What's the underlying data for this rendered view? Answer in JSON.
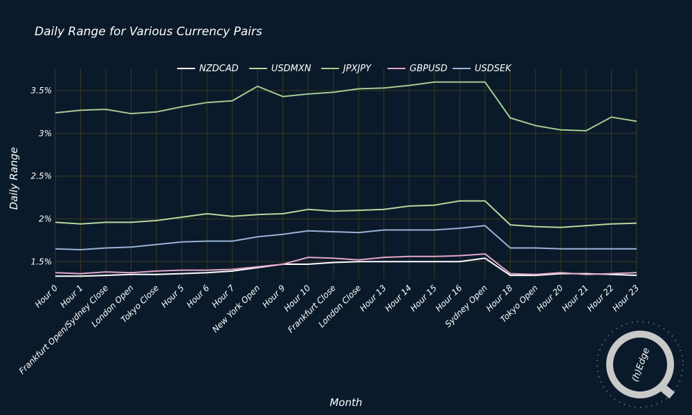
{
  "chart_data": {
    "type": "line",
    "title": "Daily Range for Various Currency Pairs",
    "xlabel": "Month",
    "ylabel": "Daily Range",
    "ylim": [
      1.3,
      3.75
    ],
    "yticks": [
      1.5,
      2,
      2.5,
      3,
      3.5
    ],
    "ytick_labels": [
      "1.5%",
      "2%",
      "2.5%",
      "3%",
      "3.5%"
    ],
    "grid": true,
    "legend_position": "top-center",
    "categories": [
      "Hour 0",
      "Hour 1",
      "Frankfurt Open/Sydney Close",
      "London Open",
      "Tokyo Close",
      "Hour 5",
      "Hour 6",
      "Hour 7",
      "New York Open",
      "Hour 9",
      "Hour 10",
      "Frankfurt Close",
      "London Close",
      "Hour 13",
      "Hour 14",
      "Hour 15",
      "Hour 16",
      "Sydney Open",
      "Hour 18",
      "Tokyo Open",
      "Hour 20",
      "Hour 21",
      "Hour 22",
      "Hour 23"
    ],
    "series": [
      {
        "name": "NZDCAD",
        "color": "#ffffff",
        "values": [
          1.33,
          1.33,
          1.34,
          1.35,
          1.35,
          1.36,
          1.37,
          1.39,
          1.43,
          1.47,
          1.47,
          1.49,
          1.5,
          1.5,
          1.5,
          1.5,
          1.5,
          1.54,
          1.34,
          1.34,
          1.36,
          1.36,
          1.35,
          1.34
        ]
      },
      {
        "name": "USDMXN",
        "color": "#b8d99a",
        "values": [
          1.96,
          1.94,
          1.96,
          1.96,
          1.98,
          2.02,
          2.06,
          2.03,
          2.05,
          2.06,
          2.11,
          2.09,
          2.1,
          2.11,
          2.15,
          2.16,
          2.21,
          2.21,
          1.93,
          1.91,
          1.9,
          1.92,
          1.94,
          1.95
        ]
      },
      {
        "name": "JPXJPY",
        "color": "#a6cc90",
        "values": [
          3.24,
          3.27,
          3.28,
          3.23,
          3.25,
          3.31,
          3.36,
          3.38,
          3.55,
          3.43,
          3.46,
          3.48,
          3.52,
          3.53,
          3.56,
          3.6,
          3.6,
          3.6,
          3.18,
          3.09,
          3.04,
          3.03,
          3.19,
          3.14
        ]
      },
      {
        "name": "GBPUSD",
        "color": "#e3a7c9",
        "values": [
          1.37,
          1.36,
          1.38,
          1.37,
          1.39,
          1.4,
          1.4,
          1.41,
          1.44,
          1.47,
          1.55,
          1.54,
          1.52,
          1.55,
          1.56,
          1.56,
          1.57,
          1.59,
          1.36,
          1.35,
          1.37,
          1.35,
          1.36,
          1.37
        ]
      },
      {
        "name": "USDSEK",
        "color": "#9bb3d6",
        "values": [
          1.65,
          1.64,
          1.66,
          1.67,
          1.7,
          1.73,
          1.74,
          1.74,
          1.79,
          1.82,
          1.86,
          1.85,
          1.84,
          1.87,
          1.87,
          1.87,
          1.89,
          1.92,
          1.66,
          1.66,
          1.65,
          1.65,
          1.65,
          1.65
        ]
      }
    ]
  },
  "watermark": {
    "text": "(h)Edge"
  }
}
